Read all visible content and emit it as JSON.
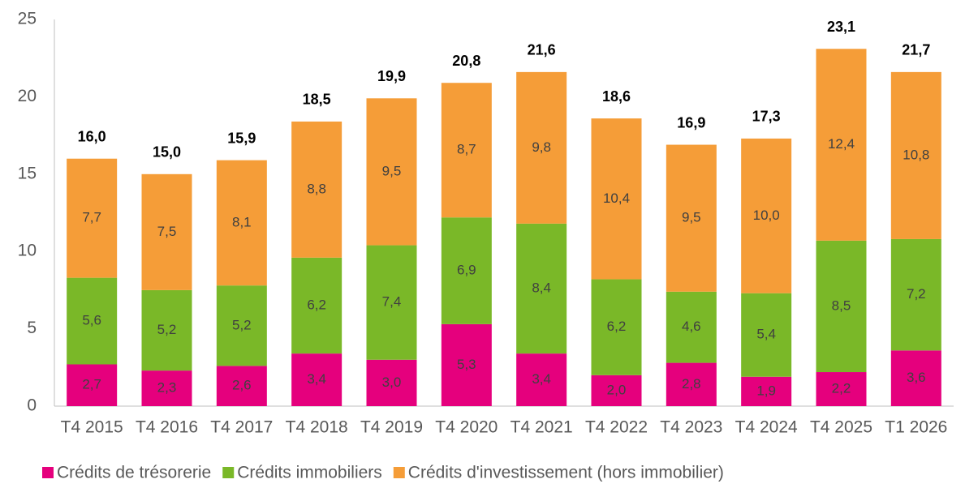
{
  "chart_data": {
    "type": "stacked_bar",
    "categories": [
      "T4 2015",
      "T4 2016",
      "T4 2017",
      "T4 2018",
      "T4 2019",
      "T4 2020",
      "T4 2021",
      "T4 2022",
      "T4 2023",
      "T4 2024",
      "T4 2025",
      "T1 2026"
    ],
    "series": [
      {
        "name": "Crédits de trésorerie",
        "color": "#e5007d",
        "values": [
          2.7,
          2.3,
          2.6,
          3.4,
          3.0,
          5.3,
          3.4,
          2.0,
          2.8,
          1.9,
          2.2,
          3.6
        ],
        "value_labels": [
          "2,7",
          "2,3",
          "2,6",
          "3,4",
          "3,0",
          "5,3",
          "3,4",
          "2,0",
          "2,8",
          "1,9",
          "2,2",
          "3,6"
        ]
      },
      {
        "name": "Crédits immobiliers",
        "color": "#7ab828",
        "values": [
          5.6,
          5.2,
          5.2,
          6.2,
          7.4,
          6.9,
          8.4,
          6.2,
          4.6,
          5.4,
          8.5,
          7.2
        ],
        "value_labels": [
          "5,6",
          "5,2",
          "5,2",
          "6,2",
          "7,4",
          "6,9",
          "8,4",
          "6,2",
          "4,6",
          "5,4",
          "8,5",
          "7,2"
        ]
      },
      {
        "name": "Crédits d'investissement (hors immobilier)",
        "color": "#f59d38",
        "values": [
          7.7,
          7.5,
          8.1,
          8.8,
          9.5,
          8.7,
          9.8,
          10.4,
          9.5,
          10.0,
          12.4,
          10.8
        ],
        "value_labels": [
          "7,7",
          "7,5",
          "8,1",
          "8,8",
          "9,5",
          "8,7",
          "9,8",
          "10,4",
          "9,5",
          "10,0",
          "12,4",
          "10,8"
        ]
      }
    ],
    "totals": [
      16.0,
      15.0,
      15.9,
      18.5,
      19.9,
      20.8,
      21.6,
      18.6,
      16.9,
      17.3,
      23.1,
      21.7
    ],
    "total_labels": [
      "16,0",
      "15,0",
      "15,9",
      "18,5",
      "19,9",
      "20,8",
      "21,6",
      "18,6",
      "16,9",
      "17,3",
      "23,1",
      "21,7"
    ],
    "ylim": [
      0,
      25
    ],
    "yticks": [
      0,
      5,
      10,
      15,
      20,
      25
    ],
    "grid": false,
    "legend": "bottom"
  }
}
